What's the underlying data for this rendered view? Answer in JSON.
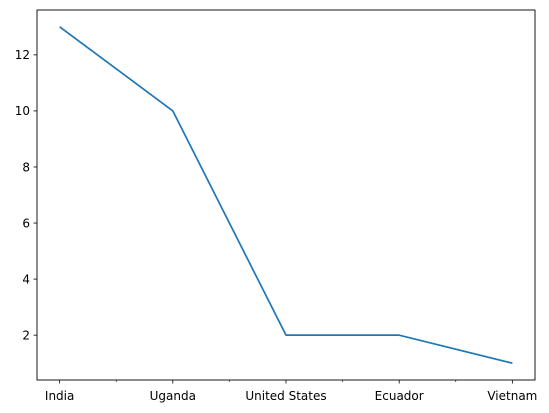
{
  "chart_data": {
    "type": "line",
    "categories": [
      "India",
      "Uganda",
      "United States",
      "Ecuador",
      "Vietnam"
    ],
    "series": [
      {
        "values": [
          13,
          10,
          2,
          2,
          1
        ]
      }
    ],
    "title": "",
    "xlabel": "",
    "ylabel": "",
    "ylim": [
      0.4,
      13.6
    ],
    "yticks": [
      2,
      4,
      6,
      8,
      10,
      12
    ],
    "grid": false,
    "line_color": "#1f77b4",
    "minor_x_ticks": true
  }
}
